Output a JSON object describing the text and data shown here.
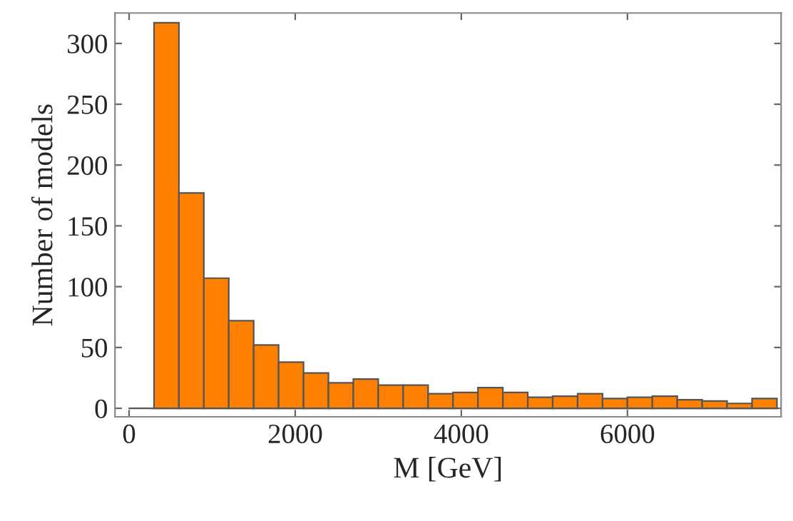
{
  "chart_data": {
    "type": "histogram",
    "xlabel": "M [GeV]",
    "ylabel": "Number of models",
    "bins": [
      300,
      600,
      900,
      1200,
      1500,
      1800,
      2100,
      2400,
      2700,
      3000,
      3300,
      3600,
      3900,
      4200,
      4500,
      4800,
      5100,
      5400,
      5700,
      6000,
      6300,
      6600,
      6900,
      7200,
      7500,
      7800
    ],
    "values": [
      317,
      177,
      107,
      72,
      52,
      38,
      29,
      21,
      24,
      19,
      19,
      12,
      13,
      17,
      13,
      9,
      10,
      12,
      8,
      9,
      10,
      7,
      6,
      4,
      8
    ],
    "color": "#ff8000",
    "xlim": [
      -170,
      7850
    ],
    "xticks": [
      0,
      2000,
      4000,
      6000
    ],
    "ylim": [
      -7,
      325
    ],
    "yticks": [
      0,
      50,
      100,
      150,
      200,
      250,
      300
    ]
  }
}
